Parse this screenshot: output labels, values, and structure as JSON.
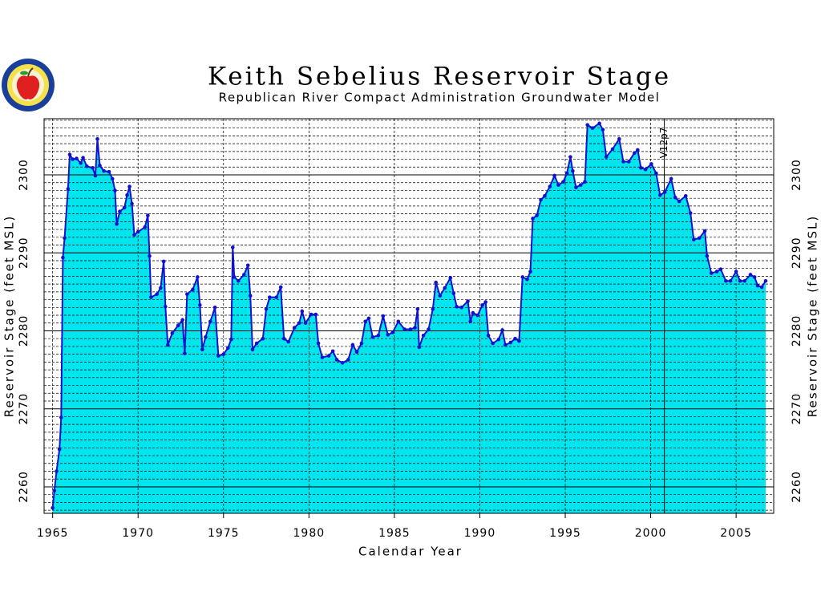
{
  "chart_data": {
    "type": "area",
    "title": "Keith Sebelius Reservoir Stage",
    "subtitle": "Republican River Compact Administration Groundwater Model",
    "x_label": "Calendar Year",
    "y_label": "Reservoir Stage (feet MSL)",
    "xlim": [
      1964.5,
      2007.2
    ],
    "ylim": [
      2256.6,
      2307.2
    ],
    "xticks": [
      1965,
      1970,
      1975,
      1980,
      1985,
      1990,
      1995,
      2000,
      2005
    ],
    "yticks": [
      2260,
      2270,
      2280,
      2290,
      2300
    ],
    "yminor_step": 1,
    "grid": true,
    "line_color": "#1010d0",
    "fill_color": "#00e5ee",
    "annotation": {
      "x": 2000.8,
      "text": "V12p7"
    },
    "x": [
      1965.0,
      1965.1,
      1965.23,
      1965.4,
      1965.5,
      1965.6,
      1965.7,
      1965.9,
      1966.0,
      1966.17,
      1966.4,
      1966.64,
      1966.78,
      1967.0,
      1967.34,
      1967.5,
      1967.62,
      1967.76,
      1968.0,
      1968.3,
      1968.5,
      1968.65,
      1968.75,
      1968.93,
      1969.2,
      1969.36,
      1969.5,
      1969.64,
      1969.78,
      1970.0,
      1970.4,
      1970.57,
      1970.67,
      1970.76,
      1971.1,
      1971.32,
      1971.5,
      1971.6,
      1971.74,
      1972.0,
      1972.35,
      1972.6,
      1972.73,
      1972.87,
      1973.2,
      1973.48,
      1973.62,
      1973.76,
      1973.95,
      1974.23,
      1974.5,
      1974.7,
      1975.0,
      1975.26,
      1975.45,
      1975.54,
      1975.63,
      1975.87,
      1976.2,
      1976.43,
      1976.57,
      1976.7,
      1976.94,
      1977.3,
      1977.5,
      1977.7,
      1978.1,
      1978.35,
      1978.54,
      1978.8,
      1979.15,
      1979.43,
      1979.6,
      1979.8,
      1980.13,
      1980.4,
      1980.55,
      1980.78,
      1981.16,
      1981.4,
      1981.63,
      1981.96,
      1982.3,
      1982.56,
      1982.8,
      1983.08,
      1983.3,
      1983.5,
      1983.73,
      1984.06,
      1984.34,
      1984.62,
      1984.9,
      1985.23,
      1985.6,
      1985.94,
      1986.2,
      1986.36,
      1986.45,
      1986.7,
      1987.0,
      1987.25,
      1987.43,
      1987.67,
      1987.95,
      1988.28,
      1988.47,
      1988.65,
      1988.93,
      1989.3,
      1989.45,
      1989.6,
      1989.87,
      1990.15,
      1990.34,
      1990.5,
      1990.76,
      1991.1,
      1991.32,
      1991.5,
      1991.8,
      1992.07,
      1992.3,
      1992.5,
      1992.77,
      1992.96,
      1993.1,
      1993.34,
      1993.57,
      1993.8,
      1994.1,
      1994.37,
      1994.6,
      1994.88,
      1995.1,
      1995.3,
      1995.44,
      1995.63,
      1995.9,
      1996.15,
      1996.3,
      1996.6,
      1997.0,
      1997.2,
      1997.4,
      1997.77,
      1998.16,
      1998.4,
      1998.72,
      1999.05,
      1999.24,
      1999.43,
      1999.7,
      2000.04,
      2000.32,
      2000.55,
      2000.83,
      2001.2,
      2001.44,
      2001.67,
      2002.05,
      2002.33,
      2002.52,
      2002.85,
      2003.17,
      2003.3,
      2003.55,
      2003.87,
      2004.1,
      2004.4,
      2004.67,
      2005.0,
      2005.23,
      2005.5,
      2005.84,
      2006.08,
      2006.26,
      2006.5,
      2006.73
    ],
    "values": [
      2257.3,
      2259.5,
      2262,
      2264.8,
      2268.9,
      2289.4,
      2291.9,
      2298.2,
      2302.6,
      2302,
      2302.1,
      2301.5,
      2302.2,
      2301.1,
      2300.9,
      2299.9,
      2304.6,
      2301.2,
      2300.5,
      2300.4,
      2299.5,
      2298,
      2293.7,
      2295.3,
      2295.8,
      2297.4,
      2298.5,
      2296.3,
      2292.3,
      2292.7,
      2293.3,
      2294.8,
      2289.6,
      2284.3,
      2284.7,
      2285.5,
      2288.9,
      2283.1,
      2278.2,
      2279.7,
      2280.7,
      2281.4,
      2277.1,
      2284.7,
      2285.3,
      2286.9,
      2283.3,
      2277.6,
      2279.2,
      2281.2,
      2283,
      2276.8,
      2277,
      2277.8,
      2278.9,
      2290.7,
      2286.9,
      2286.4,
      2287.2,
      2288.4,
      2284.5,
      2277.6,
      2278.4,
      2279,
      2282.8,
      2284.3,
      2284.3,
      2285.6,
      2279,
      2278.6,
      2280.4,
      2281,
      2282.5,
      2281,
      2282.1,
      2282.1,
      2278.4,
      2276.6,
      2276.8,
      2277.4,
      2276.3,
      2275.9,
      2276.3,
      2278.2,
      2277.3,
      2278.4,
      2281.2,
      2281.6,
      2279.2,
      2279.4,
      2281.9,
      2279.5,
      2279.8,
      2281.2,
      2280.2,
      2280.2,
      2280.4,
      2282.8,
      2277.9,
      2279.4,
      2280.2,
      2282.8,
      2286.2,
      2284.5,
      2285.5,
      2286.8,
      2284.8,
      2283.1,
      2283,
      2283.8,
      2281.2,
      2282.3,
      2282,
      2283.3,
      2283.7,
      2279.4,
      2278.4,
      2278.9,
      2280.1,
      2278.2,
      2278.5,
      2279,
      2278.7,
      2286.9,
      2286.6,
      2287.6,
      2294.4,
      2294.8,
      2296.8,
      2297.3,
      2298.5,
      2299.9,
      2298.7,
      2299.1,
      2300.2,
      2302.3,
      2300.5,
      2298.4,
      2298.7,
      2299.1,
      2306.4,
      2306,
      2306.6,
      2305.8,
      2302.3,
      2303.3,
      2304.6,
      2301.7,
      2301.7,
      2302.8,
      2303.2,
      2300.9,
      2300.7,
      2301.4,
      2300.2,
      2297.4,
      2297.8,
      2299.5,
      2297.1,
      2296.6,
      2297.3,
      2295.1,
      2291.7,
      2291.9,
      2292.8,
      2289.6,
      2287.4,
      2287.6,
      2287.9,
      2286.4,
      2286.4,
      2287.6,
      2286.4,
      2286.4,
      2287.2,
      2286.9,
      2285.8,
      2285.6,
      2286.4
    ]
  }
}
